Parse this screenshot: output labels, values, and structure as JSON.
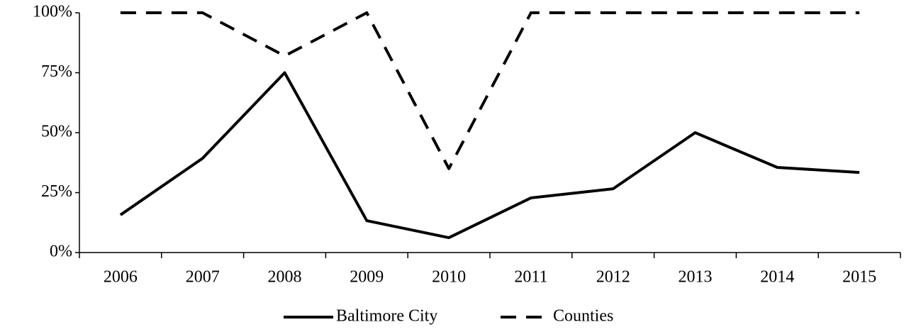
{
  "chart_data": {
    "type": "line",
    "categories": [
      "2006",
      "2007",
      "2008",
      "2009",
      "2010",
      "2011",
      "2012",
      "2013",
      "2014",
      "2015"
    ],
    "series": [
      {
        "name": "Baltimore City",
        "color": "#000000",
        "style": "solid",
        "values": [
          15.7,
          39.3,
          75,
          13.3,
          6.2,
          22.8,
          26.6,
          50,
          35.5,
          33.4
        ]
      },
      {
        "name": "Counties",
        "color": "#000000",
        "style": "dashed",
        "values": [
          100,
          100,
          82,
          100,
          35,
          100,
          100,
          100,
          100,
          100
        ]
      }
    ],
    "ylim": [
      0,
      100
    ],
    "yticks": [
      {
        "value": 0,
        "label": "0%"
      },
      {
        "value": 25,
        "label": "25%"
      },
      {
        "value": 50,
        "label": "50%"
      },
      {
        "value": 75,
        "label": "75%"
      },
      {
        "value": 100,
        "label": "100%"
      }
    ],
    "grid": false,
    "legend": "bottom"
  }
}
